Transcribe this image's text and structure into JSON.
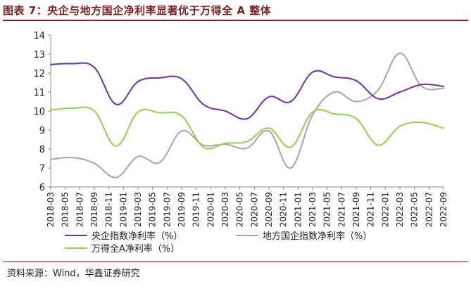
{
  "title": "图表 7：央企与地方国企净利率显著优于万得全 A 整体",
  "source": "资料来源：Wind，华鑫证券研究",
  "chart_data": {
    "type": "line",
    "ylim": [
      6,
      14
    ],
    "yticks": [
      6,
      7,
      8,
      9,
      10,
      11,
      12,
      13,
      14
    ],
    "x": [
      "2018-03",
      "2018-05",
      "2018-07",
      "2018-09",
      "2018-11",
      "2019-01",
      "2019-03",
      "2019-05",
      "2019-07",
      "2019-09",
      "2019-11",
      "2020-01",
      "2020-03",
      "2020-05",
      "2020-07",
      "2020-09",
      "2020-11",
      "2021-01",
      "2021-03",
      "2021-05",
      "2021-07",
      "2021-09",
      "2021-11",
      "2022-01",
      "2022-03",
      "2022-05",
      "2022-07",
      "2022-09"
    ],
    "x_tick_labels": [
      "2018-03",
      "2018-05",
      "2018-07",
      "2018-09",
      "2018-11",
      "2019-01",
      "2019-03",
      "2019-05",
      "2019-07",
      "2019-09",
      "2019-11",
      "2020-01",
      "2020-03",
      "2020-05",
      "2020-07",
      "2020-09",
      "2020-11",
      "2021-01",
      "2021-03",
      "2021-05",
      "2021-07",
      "2021-09",
      "2021-11",
      "2022-01",
      "2022-03",
      "2022-05",
      "2022-07",
      "2022-09"
    ],
    "series": [
      {
        "name": "央企指数净利率（%）",
        "color": "#7030A0",
        "points": [
          [
            "2018-03",
            12.45
          ],
          [
            "2018-06",
            12.5
          ],
          [
            "2018-09",
            12.3
          ],
          [
            "2018-12",
            10.35
          ],
          [
            "2019-03",
            11.55
          ],
          [
            "2019-06",
            11.75
          ],
          [
            "2019-09",
            11.7
          ],
          [
            "2019-12",
            10.35
          ],
          [
            "2020-03",
            10.0
          ],
          [
            "2020-06",
            9.6
          ],
          [
            "2020-09",
            10.75
          ],
          [
            "2020-12",
            10.5
          ],
          [
            "2021-03",
            12.05
          ],
          [
            "2021-06",
            11.8
          ],
          [
            "2021-09",
            11.6
          ],
          [
            "2021-12",
            10.65
          ],
          [
            "2022-03",
            11.0
          ],
          [
            "2022-06",
            11.4
          ],
          [
            "2022-09",
            11.3
          ]
        ]
      },
      {
        "name": "地方国企指数净利率（%）",
        "color": "#A6A6A6",
        "points": [
          [
            "2018-03",
            7.45
          ],
          [
            "2018-06",
            7.55
          ],
          [
            "2018-09",
            7.25
          ],
          [
            "2018-12",
            6.5
          ],
          [
            "2019-03",
            7.6
          ],
          [
            "2019-06",
            7.3
          ],
          [
            "2019-09",
            8.95
          ],
          [
            "2019-12",
            8.2
          ],
          [
            "2020-03",
            8.25
          ],
          [
            "2020-06",
            8.05
          ],
          [
            "2020-09",
            8.95
          ],
          [
            "2020-12",
            7.0
          ],
          [
            "2021-03",
            9.8
          ],
          [
            "2021-06",
            11.0
          ],
          [
            "2021-09",
            10.5
          ],
          [
            "2021-12",
            11.1
          ],
          [
            "2022-03",
            13.05
          ],
          [
            "2022-06",
            11.3
          ],
          [
            "2022-09",
            11.2
          ]
        ]
      },
      {
        "name": "万得全A净利率（%）",
        "color": "#92D050",
        "points": [
          [
            "2018-03",
            10.05
          ],
          [
            "2018-06",
            10.15
          ],
          [
            "2018-09",
            10.0
          ],
          [
            "2018-12",
            8.15
          ],
          [
            "2019-03",
            9.95
          ],
          [
            "2019-06",
            9.9
          ],
          [
            "2019-09",
            9.75
          ],
          [
            "2019-12",
            8.1
          ],
          [
            "2020-03",
            8.3
          ],
          [
            "2020-06",
            8.4
          ],
          [
            "2020-09",
            9.1
          ],
          [
            "2020-12",
            8.1
          ],
          [
            "2021-03",
            9.95
          ],
          [
            "2021-06",
            9.85
          ],
          [
            "2021-09",
            9.6
          ],
          [
            "2021-12",
            8.2
          ],
          [
            "2022-03",
            9.2
          ],
          [
            "2022-06",
            9.4
          ],
          [
            "2022-09",
            9.1
          ]
        ]
      }
    ],
    "grid": false,
    "legend_position": "bottom"
  }
}
